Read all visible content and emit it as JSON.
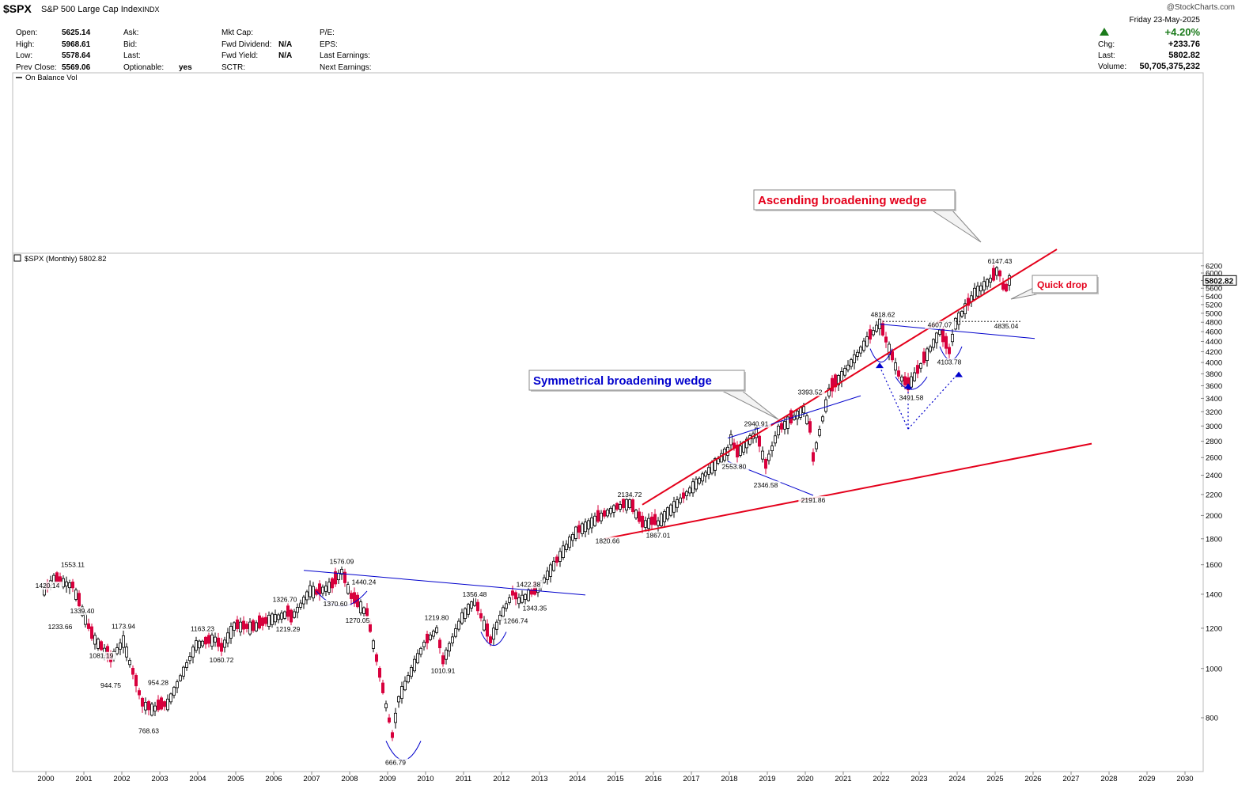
{
  "header": {
    "ticker": "$SPX",
    "name": "S&P 500 Large Cap Index",
    "exchange": "INDX",
    "watermark": "@StockCharts.com"
  },
  "quote_fields": [
    {
      "label": "Open:",
      "value": "5625.14"
    },
    {
      "label": "High:",
      "value": "5968.61"
    },
    {
      "label": "Low:",
      "value": "5578.64"
    },
    {
      "label": "Prev Close:",
      "value": "5569.06"
    },
    {
      "label": "Ask:",
      "value": ""
    },
    {
      "label": "Bid:",
      "value": ""
    },
    {
      "label": "Last:",
      "value": ""
    },
    {
      "label": "Optionable:",
      "value": "yes"
    },
    {
      "label": "Mkt Cap:",
      "value": ""
    },
    {
      "label": "Fwd Dividend:",
      "value": "N/A"
    },
    {
      "label": "Fwd Yield:",
      "value": "N/A"
    },
    {
      "label": "SCTR:",
      "value": ""
    },
    {
      "label": "P/E:",
      "value": ""
    },
    {
      "label": "EPS:",
      "value": ""
    },
    {
      "label": "Last Earnings:",
      "value": ""
    },
    {
      "label": "Next Earnings:",
      "value": ""
    }
  ],
  "right_quote": {
    "date": "Friday  23-May-2025",
    "change_pct": "+4.20%",
    "chg_label": "Chg:",
    "chg_value": "+233.76",
    "last_label": "Last:",
    "last_value": "5802.82",
    "volume_label": "Volume:",
    "volume_value": "50,705,375,232",
    "up_color": "#1a7a1a"
  },
  "indicator": {
    "legend": "On Balance Vol"
  },
  "price_legend": "$SPX (Monthly) 5802.82",
  "chart_data": {
    "type": "candlestick",
    "scale": "log",
    "title": "$SPX (Monthly) 5802.82",
    "last_price": "5802.82",
    "x_ticks": [
      "2000",
      "2001",
      "2002",
      "2003",
      "2004",
      "2005",
      "2006",
      "2007",
      "2008",
      "2009",
      "2010",
      "2011",
      "2012",
      "2013",
      "2014",
      "2015",
      "2016",
      "2017",
      "2018",
      "2019",
      "2020",
      "2021",
      "2022",
      "2023",
      "2024",
      "2025",
      "2026",
      "2027",
      "2028",
      "2029",
      "2030"
    ],
    "y_ticks": [
      800,
      1000,
      1200,
      1400,
      1600,
      1800,
      2000,
      2200,
      2400,
      2600,
      2800,
      3000,
      3200,
      3400,
      3600,
      3800,
      4000,
      4200,
      4400,
      4600,
      4800,
      5000,
      5200,
      5400,
      5600,
      5800,
      6000,
      6200
    ],
    "ylim": [
      620,
      6500
    ],
    "path": [
      [
        "1999-12",
        1420
      ],
      [
        "2000-03",
        1500
      ],
      [
        "2000-09",
        1450
      ],
      [
        "2001-03",
        1160
      ],
      [
        "2001-09",
        1040
      ],
      [
        "2002-01",
        1130
      ],
      [
        "2002-07",
        850
      ],
      [
        "2002-10",
        830
      ],
      [
        "2003-03",
        850
      ],
      [
        "2003-12",
        1110
      ],
      [
        "2004-06",
        1140
      ],
      [
        "2004-08",
        1090
      ],
      [
        "2004-12",
        1210
      ],
      [
        "2005-06",
        1200
      ],
      [
        "2005-12",
        1250
      ],
      [
        "2006-05",
        1280
      ],
      [
        "2006-06",
        1250
      ],
      [
        "2006-12",
        1420
      ],
      [
        "2007-02",
        1406
      ],
      [
        "2007-07",
        1455
      ],
      [
        "2007-10",
        1550
      ],
      [
        "2008-01",
        1380
      ],
      [
        "2008-06",
        1280
      ],
      [
        "2008-10",
        970
      ],
      [
        "2009-02",
        735
      ],
      [
        "2009-04",
        870
      ],
      [
        "2009-12",
        1115
      ],
      [
        "2010-04",
        1190
      ],
      [
        "2010-06",
        1030
      ],
      [
        "2010-12",
        1258
      ],
      [
        "2011-04",
        1360
      ],
      [
        "2011-09",
        1130
      ],
      [
        "2011-12",
        1258
      ],
      [
        "2012-04",
        1400
      ],
      [
        "2012-06",
        1360
      ],
      [
        "2012-12",
        1430
      ],
      [
        "2013-12",
        1850
      ],
      [
        "2014-12",
        2060
      ],
      [
        "2015-05",
        2110
      ],
      [
        "2015-09",
        1920
      ],
      [
        "2016-01",
        1940
      ],
      [
        "2016-02",
        1932
      ],
      [
        "2016-12",
        2240
      ],
      [
        "2017-12",
        2675
      ],
      [
        "2018-01",
        2820
      ],
      [
        "2018-03",
        2640
      ],
      [
        "2018-09",
        2910
      ],
      [
        "2018-12",
        2500
      ],
      [
        "2019-04",
        2940
      ],
      [
        "2019-12",
        3230
      ],
      [
        "2020-02",
        2950
      ],
      [
        "2020-03",
        2580
      ],
      [
        "2020-08",
        3500
      ],
      [
        "2020-12",
        3760
      ],
      [
        "2021-12",
        4765
      ],
      [
        "2022-06",
        3780
      ],
      [
        "2022-09",
        3580
      ],
      [
        "2022-12",
        3840
      ],
      [
        "2023-07",
        4590
      ],
      [
        "2023-10",
        4190
      ],
      [
        "2023-12",
        4770
      ],
      [
        "2024-06",
        5460
      ],
      [
        "2024-12",
        5880
      ],
      [
        "2025-01",
        6040
      ],
      [
        "2025-02",
        5950
      ],
      [
        "2025-03",
        5610
      ],
      [
        "2025-04",
        5569
      ],
      [
        "2025-05",
        5802
      ]
    ],
    "down_months": [
      "2000-01",
      "2000-04",
      "2000-05",
      "2000-09",
      "2000-11",
      "2001-02",
      "2001-03",
      "2001-06",
      "2001-08",
      "2001-09",
      "2002-04",
      "2002-05",
      "2002-06",
      "2002-07",
      "2002-09",
      "2002-12",
      "2003-01",
      "2003-02",
      "2004-03",
      "2004-04",
      "2004-07",
      "2004-08",
      "2005-01",
      "2005-03",
      "2005-04",
      "2005-06",
      "2005-08",
      "2005-09",
      "2005-10",
      "2006-05",
      "2006-06",
      "2007-02",
      "2007-03",
      "2007-07",
      "2007-08",
      "2007-11",
      "2008-01",
      "2008-02",
      "2008-03",
      "2008-06",
      "2008-07",
      "2008-09",
      "2008-10",
      "2008-11",
      "2009-01",
      "2009-02",
      "2010-01",
      "2010-05",
      "2010-06",
      "2011-05",
      "2011-06",
      "2011-08",
      "2011-09",
      "2012-04",
      "2012-05",
      "2012-10",
      "2012-11",
      "2013-06",
      "2014-01",
      "2014-07",
      "2014-09",
      "2015-01",
      "2015-03",
      "2015-06",
      "2015-08",
      "2015-09",
      "2015-12",
      "2016-01",
      "2016-10",
      "2018-02",
      "2018-03",
      "2018-10",
      "2018-12",
      "2019-05",
      "2019-08",
      "2020-02",
      "2020-03",
      "2020-09",
      "2020-10",
      "2021-09",
      "2022-01",
      "2022-02",
      "2022-04",
      "2022-06",
      "2022-08",
      "2022-09",
      "2022-12",
      "2023-02",
      "2023-08",
      "2023-09",
      "2023-10",
      "2024-04",
      "2024-12",
      "2025-02",
      "2025-03",
      "2025-04"
    ],
    "price_labels": [
      {
        "text": "1420.14",
        "date": "2000-01",
        "y": 1420
      },
      {
        "text": "1553.11",
        "date": "2000-09",
        "y": 1560
      },
      {
        "text": "1339.40",
        "date": "2000-12",
        "y": 1330
      },
      {
        "text": "1233.66",
        "date": "2000-05",
        "y": 1238
      },
      {
        "text": "1173.94",
        "date": "2002-01",
        "y": 1180
      },
      {
        "text": "1081.19",
        "date": "2001-06",
        "y": 1086
      },
      {
        "text": "944.75",
        "date": "2001-09",
        "y": 950
      },
      {
        "text": "954.28",
        "date": "2002-12",
        "y": 962
      },
      {
        "text": "768.63",
        "date": "2002-09",
        "y": 773
      },
      {
        "text": "1163.23",
        "date": "2004-02",
        "y": 1168
      },
      {
        "text": "1060.72",
        "date": "2004-08",
        "y": 1066
      },
      {
        "text": "1326.70",
        "date": "2006-04",
        "y": 1333
      },
      {
        "text": "1219.29",
        "date": "2006-05",
        "y": 1225
      },
      {
        "text": "1576.09",
        "date": "2007-10",
        "y": 1585
      },
      {
        "text": "1440.24",
        "date": "2008-05",
        "y": 1443
      },
      {
        "text": "1370.60",
        "date": "2007-08",
        "y": 1374
      },
      {
        "text": "1270.05",
        "date": "2008-03",
        "y": 1275
      },
      {
        "text": "666.79",
        "date": "2009-03",
        "y": 670
      },
      {
        "text": "1219.80",
        "date": "2010-04",
        "y": 1227
      },
      {
        "text": "1010.91",
        "date": "2010-06",
        "y": 1015
      },
      {
        "text": "1356.48",
        "date": "2011-04",
        "y": 1364
      },
      {
        "text": "1266.74",
        "date": "2012-05",
        "y": 1273
      },
      {
        "text": "1422.38",
        "date": "2012-09",
        "y": 1428
      },
      {
        "text": "1343.35",
        "date": "2012-11",
        "y": 1348
      },
      {
        "text": "2134.72",
        "date": "2015-05",
        "y": 2145
      },
      {
        "text": "1820.66",
        "date": "2014-10",
        "y": 1828
      },
      {
        "text": "1867.01",
        "date": "2016-02",
        "y": 1874
      },
      {
        "text": "2940.91",
        "date": "2018-09",
        "y": 2955
      },
      {
        "text": "2553.80",
        "date": "2018-02",
        "y": 2562
      },
      {
        "text": "2346.58",
        "date": "2018-12",
        "y": 2352
      },
      {
        "text": "3393.52",
        "date": "2020-02",
        "y": 3410
      },
      {
        "text": "2191.86",
        "date": "2020-03",
        "y": 2199
      },
      {
        "text": "4818.62",
        "date": "2022-01",
        "y": 4845
      },
      {
        "text": "3491.58",
        "date": "2022-10",
        "y": 3496
      },
      {
        "text": "4607.07",
        "date": "2023-07",
        "y": 4625
      },
      {
        "text": "4103.78",
        "date": "2023-10",
        "y": 4108
      },
      {
        "text": "6147.43",
        "date": "2025-02",
        "y": 6170
      },
      {
        "text": "4835.04",
        "date": "2025-04",
        "y": 4840
      }
    ],
    "annotations": [
      {
        "text": "Ascending broadening wedge",
        "color": "#e4001b"
      },
      {
        "text": "Symmetrical broadening wedge",
        "color": "#0000cc"
      },
      {
        "text": "Quick drop",
        "color": "#e4001b"
      }
    ],
    "trendlines": [
      {
        "color": "#e4001b",
        "from": [
          "2015-09",
          2100
        ],
        "to": [
          "2026-08",
          6680
        ]
      },
      {
        "color": "#e4001b",
        "from": [
          "2014-09",
          1800
        ],
        "to": [
          "2027-07",
          2770
        ]
      },
      {
        "color": "#0000cc",
        "from": [
          "2006-10",
          1560
        ],
        "to": [
          "2014-03",
          1395
        ]
      },
      {
        "color": "#0000cc",
        "from": [
          "2017-12",
          2840
        ],
        "to": [
          "2021-06",
          3440
        ]
      },
      {
        "color": "#0000cc",
        "from": [
          "2017-12",
          2555
        ],
        "to": [
          "2020-03",
          2191
        ]
      },
      {
        "color": "#0000cc",
        "from": [
          "2021-12",
          4760
        ],
        "to": [
          "2026-01",
          4460
        ]
      }
    ],
    "colors": {
      "up": "#000000",
      "down": "#d8003d",
      "red_line": "#e4001b",
      "blue_line": "#0000cc"
    }
  }
}
